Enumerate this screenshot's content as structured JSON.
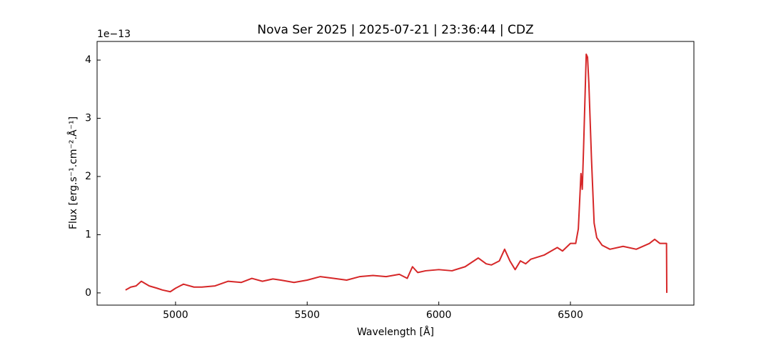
{
  "chart_data": {
    "type": "line",
    "title": "Nova Ser 2025 | 2025-07-21 | 23:36:44 | CDZ",
    "x_label": "Wavelength [Å]",
    "y_label": "Flux [erg.s⁻¹.cm⁻².Å⁻¹]",
    "y_offset_label": "1e−13",
    "x": [
      4810,
      4830,
      4850,
      4870,
      4900,
      4930,
      4950,
      4980,
      5000,
      5030,
      5070,
      5100,
      5150,
      5200,
      5250,
      5290,
      5330,
      5370,
      5400,
      5450,
      5500,
      5550,
      5600,
      5650,
      5700,
      5750,
      5800,
      5850,
      5880,
      5900,
      5920,
      5950,
      6000,
      6050,
      6100,
      6150,
      6180,
      6200,
      6230,
      6250,
      6270,
      6290,
      6310,
      6330,
      6350,
      6400,
      6450,
      6470,
      6500,
      6520,
      6530,
      6540,
      6545,
      6550,
      6560,
      6565,
      6570,
      6580,
      6590,
      6600,
      6620,
      6650,
      6700,
      6750,
      6800,
      6820,
      6840,
      6865,
      6866
    ],
    "series": [
      {
        "color": "#d62728",
        "values": [
          0.05,
          0.1,
          0.12,
          0.2,
          0.12,
          0.08,
          0.05,
          0.02,
          0.08,
          0.15,
          0.1,
          0.1,
          0.12,
          0.2,
          0.18,
          0.25,
          0.2,
          0.24,
          0.22,
          0.18,
          0.22,
          0.28,
          0.25,
          0.22,
          0.28,
          0.3,
          0.28,
          0.32,
          0.25,
          0.45,
          0.35,
          0.38,
          0.4,
          0.38,
          0.45,
          0.6,
          0.5,
          0.48,
          0.55,
          0.75,
          0.55,
          0.4,
          0.55,
          0.5,
          0.58,
          0.65,
          0.78,
          0.72,
          0.85,
          0.85,
          1.1,
          2.05,
          1.78,
          2.5,
          4.1,
          4.05,
          3.6,
          2.3,
          1.2,
          0.95,
          0.82,
          0.75,
          0.8,
          0.75,
          0.85,
          0.92,
          0.85,
          0.85,
          0.0
        ]
      }
    ],
    "xlim": [
      4702,
      6969
    ],
    "ylim": [
      -0.21,
      4.32
    ],
    "xticks": [
      5000,
      5500,
      6000,
      6500
    ],
    "yticks": [
      0,
      1,
      2,
      3,
      4
    ]
  }
}
